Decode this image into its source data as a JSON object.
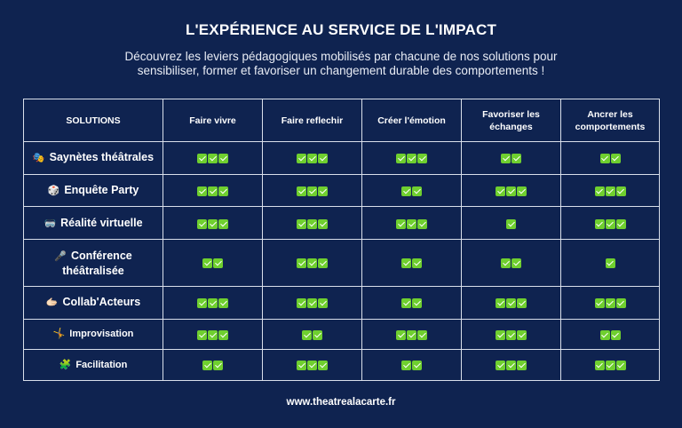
{
  "title": "L'EXPÉRIENCE AU SERVICE DE L'IMPACT",
  "subtitle_lines": [
    "Découvrez les leviers pédagogiques mobilisés par chacune de nos solutions pour",
    "sensibiliser, former et favoriser un changement durable des comportements !"
  ],
  "table": {
    "headers": [
      "SOLUTIONS",
      "Faire vivre",
      "Faire reflechir",
      "Créer l'émotion",
      "Favoriser les échanges",
      "Ancrer les comportements"
    ],
    "rows": [
      {
        "icon": "🎭",
        "icon_name": "theater-masks-icon",
        "label": "Saynètes théâtrales",
        "checks": [
          3,
          3,
          3,
          2,
          2
        ]
      },
      {
        "icon": "🎲",
        "icon_name": "dice-icon",
        "label": "Enquête Party",
        "checks": [
          3,
          3,
          2,
          3,
          3
        ]
      },
      {
        "icon": "🥽",
        "icon_name": "vr-goggles-icon",
        "label": "Réalité virtuelle",
        "checks": [
          3,
          3,
          3,
          1,
          3
        ]
      },
      {
        "icon": "🎤",
        "icon_name": "microphone-icon",
        "label": "Conférence théâtralisée",
        "checks": [
          2,
          3,
          2,
          2,
          1
        ]
      },
      {
        "icon": "🫱🏻",
        "icon_name": "handshake-icon",
        "label": "Collab'Acteurs",
        "checks": [
          3,
          3,
          2,
          3,
          3
        ]
      },
      {
        "icon": "🤸",
        "icon_name": "person-cartwheel-icon",
        "label": "Improvisation",
        "checks": [
          3,
          2,
          3,
          3,
          2
        ]
      },
      {
        "icon": "🧩",
        "icon_name": "puzzle-icon",
        "label": "Facilitation",
        "checks": [
          2,
          3,
          2,
          3,
          3
        ]
      }
    ]
  },
  "footer": "www.theatrealacarte.fr",
  "colors": {
    "background": "#0f2350",
    "border": "#d9dfea",
    "check": "#6fcf2f"
  }
}
